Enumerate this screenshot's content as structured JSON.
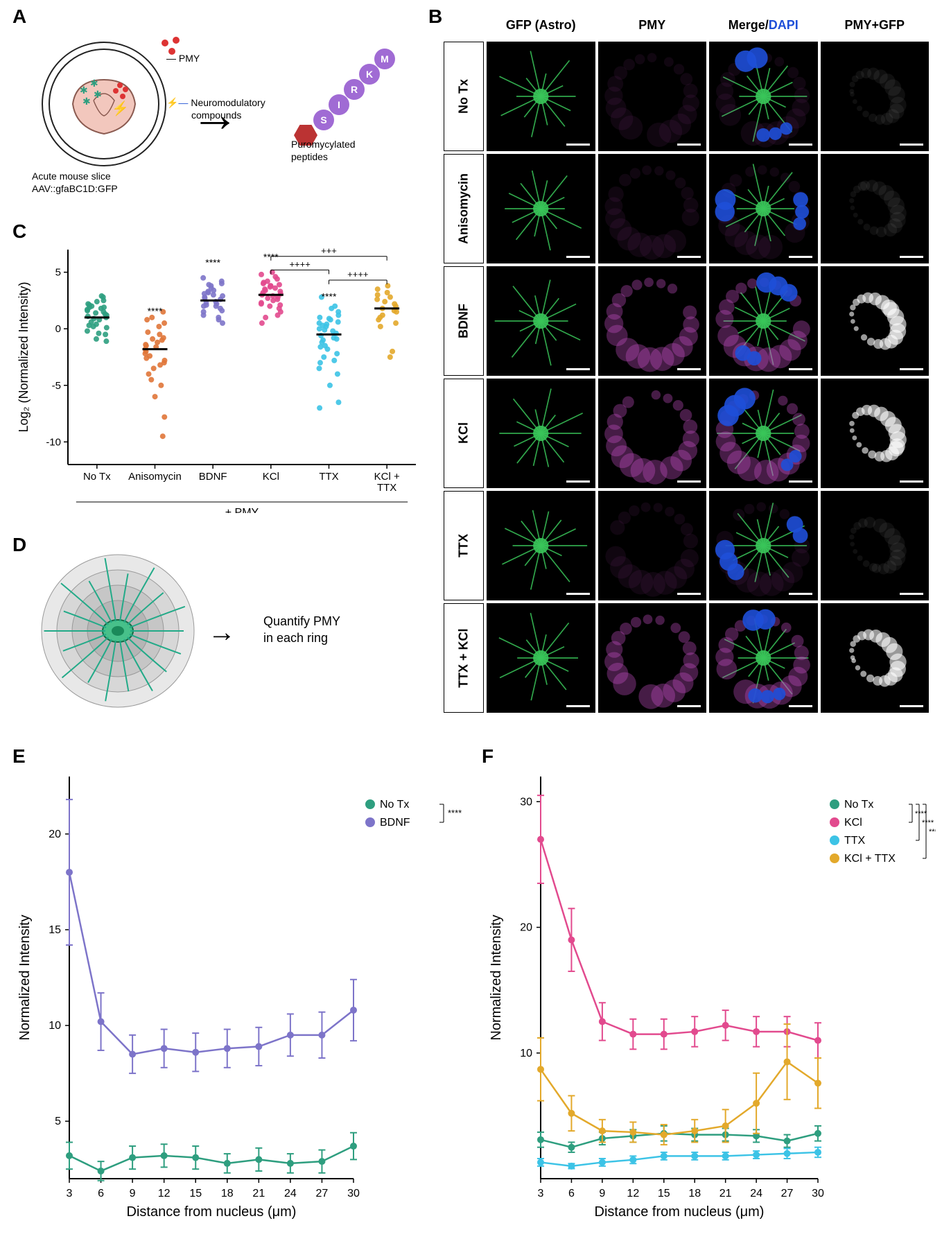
{
  "labels": {
    "A": "A",
    "B": "B",
    "C": "C",
    "D": "D",
    "E": "E",
    "F": "F"
  },
  "colors": {
    "notx": "#2e9e7f",
    "aniso": "#e07638",
    "bdnf": "#7d74c9",
    "kcl": "#e24a8e",
    "ttx": "#3cc3e6",
    "kclttx": "#e3a92b",
    "dapi": "#1e4fd8",
    "gfp": "#39c559",
    "pmy": "#c850c8",
    "axis": "#000000"
  },
  "panelA": {
    "pmy_label": "PMY",
    "neuro_label": "Neuromodulatory",
    "neuro_label2": "compounds",
    "caption": "Acute mouse slice",
    "caption2": "AAV::gfaBC1D:GFP",
    "peptide_label": "Puromycylated",
    "peptide_label2": "peptides",
    "amino": [
      "M",
      "K",
      "R",
      "I",
      "S"
    ],
    "aa_colors": [
      "#a06bd4",
      "#a06bd4",
      "#a06bd4",
      "#a06bd4",
      "#a06bd4"
    ]
  },
  "panelB": {
    "col_heads": [
      "GFP (Astro)",
      "PMY",
      "Merge/",
      "PMY+GFP"
    ],
    "dapi": "DAPI",
    "row_labels": [
      "No Tx",
      "Anisomycin",
      "BDNF",
      "KCl",
      "TTX",
      "TTX + KCl"
    ]
  },
  "panelC": {
    "ylabel": "Log₂ (Normalized Intensity)",
    "yticks": [
      -10,
      -5,
      0,
      5
    ],
    "yrange": [
      -12,
      7
    ],
    "categories": [
      "No Tx",
      "Anisomycin",
      "BDNF",
      "KCl",
      "TTX",
      "KCl +\nTTX"
    ],
    "bottom_label": "+ PMY",
    "means": [
      1.0,
      -1.8,
      2.5,
      3.0,
      -0.5,
      1.8
    ],
    "sig_vs_notx": [
      "",
      "****",
      "****",
      "****",
      "****",
      ""
    ],
    "comparisons": [
      {
        "a": "KCl",
        "b": "TTX",
        "y": 5.2,
        "text": "++++"
      },
      {
        "a": "KCl",
        "b": "KCl + TTX",
        "y": 6.4,
        "text": "+++"
      },
      {
        "a": "TTX",
        "b": "KCl + TTX",
        "y": 4.3,
        "text": "++++"
      }
    ],
    "points": {
      "No Tx": [
        2.4,
        1.9,
        1.2,
        2.8,
        1.4,
        0.3,
        1.6,
        2.0,
        0.8,
        -0.5,
        1.0,
        1.8,
        0.2,
        1.1,
        2.2,
        0.9,
        2.9,
        -1.1,
        1.3,
        -0.4,
        0.6,
        1.7,
        2.1,
        -0.9,
        1.5,
        0.1,
        2.5,
        0.4,
        1.9,
        -0.2
      ],
      "Anisomycin": [
        1.5,
        0.5,
        -0.5,
        1.0,
        -1.5,
        -2.0,
        -4.5,
        0.2,
        -3.0,
        -0.8,
        -1.2,
        -2.4,
        -1.8,
        0.8,
        -3.5,
        -5.0,
        -2.8,
        -1.0,
        -6.0,
        -0.3,
        -2.2,
        -4.0,
        -1.6,
        -9.5,
        -7.8,
        -3.2,
        -0.9,
        -2.6,
        -1.4
      ],
      "BDNF": [
        4.0,
        2.0,
        3.2,
        1.5,
        2.8,
        3.8,
        1.0,
        0.5,
        2.6,
        3.4,
        2.1,
        4.5,
        2.3,
        3.0,
        1.8,
        2.9,
        0.8,
        3.6,
        2.7,
        1.2,
        3.3,
        2.4,
        4.2,
        1.6,
        2.2,
        3.9,
        2.0,
        3.1
      ],
      "KCl": [
        5.0,
        3.5,
        2.2,
        4.1,
        3.8,
        2.8,
        1.5,
        4.4,
        2.0,
        3.2,
        4.8,
        1.0,
        2.5,
        3.9,
        2.1,
        3.6,
        4.2,
        0.5,
        3.0,
        2.7,
        4.6,
        3.3,
        1.8,
        2.9,
        3.4,
        2.3,
        4.0,
        3.7,
        2.6,
        3.1,
        1.2,
        3.8
      ],
      "TTX": [
        2.8,
        0.5,
        -1.0,
        0.8,
        -2.2,
        1.5,
        -0.8,
        0.2,
        -3.0,
        1.0,
        -1.5,
        -0.2,
        0.6,
        -4.0,
        1.8,
        -2.5,
        0.0,
        -0.6,
        -1.8,
        2.0,
        -6.5,
        -0.4,
        0.9,
        -1.2,
        -3.5,
        0.3,
        -5.0,
        -0.9,
        1.2,
        -2.8,
        0.4,
        -1.6,
        -7.0,
        -0.1
      ],
      "KCl + TTX": [
        3.5,
        1.2,
        2.8,
        0.5,
        2.0,
        -2.5,
        1.8,
        3.0,
        0.8,
        2.4,
        -2.0,
        1.5,
        2.2,
        3.8,
        0.2,
        2.6,
        1.0,
        3.2,
        1.6
      ]
    },
    "point_colors": {
      "No Tx": "#2e9e7f",
      "Anisomycin": "#e07638",
      "BDNF": "#7d74c9",
      "KCl": "#e24a8e",
      "TTX": "#3cc3e6",
      "KCl + TTX": "#e3a92b"
    }
  },
  "panelD": {
    "label": "Quantify PMY",
    "label2": "in each ring",
    "ring_fills": [
      "#e8e8e8",
      "#d7d7d7",
      "#c6c6c6",
      "#b5b5b5"
    ],
    "ring_radii": [
      110,
      88,
      66,
      44
    ],
    "cell": "#47c08a"
  },
  "panelE": {
    "title": "",
    "xlabel": "Distance from nucleus (μm)",
    "ylabel": "Normalized Intensity",
    "x": [
      3,
      6,
      9,
      12,
      15,
      18,
      21,
      24,
      27,
      30
    ],
    "yticks": [
      5,
      10,
      15,
      20
    ],
    "yrange": [
      2,
      23
    ],
    "series": [
      {
        "name": "No Tx",
        "color": "#2e9e7f",
        "y": [
          3.2,
          2.4,
          3.1,
          3.2,
          3.1,
          2.8,
          3.0,
          2.8,
          2.9,
          3.7
        ],
        "err": [
          0.7,
          0.5,
          0.6,
          0.6,
          0.6,
          0.5,
          0.6,
          0.5,
          0.6,
          0.7
        ]
      },
      {
        "name": "BDNF",
        "color": "#7d74c9",
        "y": [
          18.0,
          10.2,
          8.5,
          8.8,
          8.6,
          8.8,
          8.9,
          9.5,
          9.5,
          10.8
        ],
        "err": [
          3.8,
          1.5,
          1.0,
          1.0,
          1.0,
          1.0,
          1.0,
          1.1,
          1.2,
          1.6
        ]
      }
    ],
    "sig": "****"
  },
  "panelF": {
    "xlabel": "Distance from nucleus (μm)",
    "ylabel": "Normalized Intensity",
    "x": [
      3,
      6,
      9,
      12,
      15,
      18,
      21,
      24,
      27,
      30
    ],
    "yticks": [
      10,
      20,
      30
    ],
    "yrange": [
      0,
      32
    ],
    "series": [
      {
        "name": "No Tx",
        "color": "#2e9e7f",
        "y": [
          3.1,
          2.5,
          3.2,
          3.4,
          3.6,
          3.5,
          3.5,
          3.4,
          3.0,
          3.6
        ],
        "err": [
          0.6,
          0.4,
          0.5,
          0.5,
          0.6,
          0.5,
          0.5,
          0.5,
          0.5,
          0.6
        ]
      },
      {
        "name": "KCl",
        "color": "#e24a8e",
        "y": [
          27.0,
          19.0,
          12.5,
          11.5,
          11.5,
          11.7,
          12.2,
          11.7,
          11.7,
          11.0
        ],
        "err": [
          3.5,
          2.5,
          1.5,
          1.2,
          1.2,
          1.2,
          1.2,
          1.2,
          1.2,
          1.4
        ]
      },
      {
        "name": "TTX",
        "color": "#3cc3e6",
        "y": [
          1.3,
          1.0,
          1.3,
          1.5,
          1.8,
          1.8,
          1.8,
          1.9,
          2.0,
          2.1
        ],
        "err": [
          0.3,
          0.2,
          0.3,
          0.3,
          0.3,
          0.3,
          0.3,
          0.3,
          0.4,
          0.4
        ]
      },
      {
        "name": "KCl + TTX",
        "color": "#e3a92b",
        "y": [
          8.7,
          5.2,
          3.8,
          3.7,
          3.5,
          3.8,
          4.2,
          6.0,
          9.3,
          7.6
        ],
        "err": [
          2.5,
          1.4,
          0.9,
          0.8,
          0.8,
          0.9,
          1.3,
          2.4,
          3.0,
          2.0
        ]
      }
    ],
    "sigs": [
      {
        "from": "No Tx",
        "to": "KCl",
        "text": "****"
      },
      {
        "from": "No Tx",
        "to": "TTX",
        "text": "****"
      },
      {
        "from": "No Tx",
        "to": "KCl + TTX",
        "text": "****"
      }
    ]
  }
}
